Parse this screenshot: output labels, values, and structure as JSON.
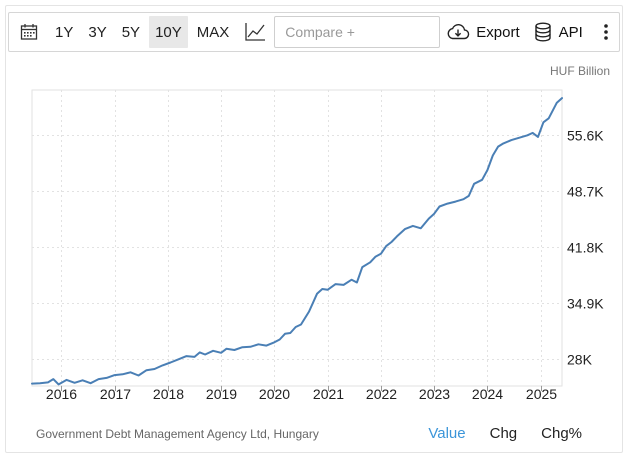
{
  "toolbar": {
    "calendar_icon": "calendar-icon",
    "ranges": [
      {
        "label": "1Y",
        "active": false
      },
      {
        "label": "3Y",
        "active": false
      },
      {
        "label": "5Y",
        "active": false
      },
      {
        "label": "10Y",
        "active": true
      },
      {
        "label": "MAX",
        "active": false
      }
    ],
    "chart_type_icon": "line-chart-icon",
    "compare_placeholder": "Compare +",
    "export_label": "Export",
    "export_icon": "cloud-download-icon",
    "api_label": "API",
    "api_icon": "database-icon",
    "more_icon": "more-vertical-icon"
  },
  "unit_label": "HUF Billion",
  "footer": {
    "source": "Government Debt Management Agency Ltd, Hungary",
    "tabs": [
      {
        "label": "Value",
        "active": true
      },
      {
        "label": "Chg",
        "active": false
      },
      {
        "label": "Chg%",
        "active": false
      }
    ]
  },
  "colors": {
    "line": "#4a7fb5",
    "grid": "#e2e2e2",
    "active_tab": "#3b95d9"
  },
  "chart_data": {
    "type": "line",
    "title": "",
    "xlabel": "",
    "ylabel": "HUF Billion",
    "x_ticks": [
      "2016",
      "2017",
      "2018",
      "2019",
      "2020",
      "2021",
      "2022",
      "2023",
      "2024",
      "2025"
    ],
    "y_ticks": [
      {
        "value": 28000,
        "label": "28K"
      },
      {
        "value": 34900,
        "label": "34.9K"
      },
      {
        "value": 41800,
        "label": "41.8K"
      },
      {
        "value": 48700,
        "label": "48.7K"
      },
      {
        "value": 55600,
        "label": "55.6K"
      }
    ],
    "xlim": [
      2015.45,
      2025.4
    ],
    "ylim": [
      24600,
      61200
    ],
    "grid": true,
    "series": [
      {
        "x": [
          2015.45,
          2015.6,
          2015.75,
          2015.85,
          2015.95,
          2016.1,
          2016.25,
          2016.4,
          2016.55,
          2016.7,
          2016.85,
          2017.0,
          2017.15,
          2017.3,
          2017.45,
          2017.6,
          2017.75,
          2017.9,
          2018.05,
          2018.2,
          2018.35,
          2018.5,
          2018.6,
          2018.7,
          2018.85,
          2019.0,
          2019.1,
          2019.25,
          2019.4,
          2019.55,
          2019.7,
          2019.85,
          2020.0,
          2020.1,
          2020.2,
          2020.3,
          2020.4,
          2020.5,
          2020.65,
          2020.8,
          2020.9,
          2021.0,
          2021.15,
          2021.3,
          2021.45,
          2021.55,
          2021.65,
          2021.8,
          2021.9,
          2022.0,
          2022.1,
          2022.2,
          2022.3,
          2022.45,
          2022.6,
          2022.75,
          2022.9,
          2023.0,
          2023.1,
          2023.25,
          2023.4,
          2023.55,
          2023.65,
          2023.75,
          2023.9,
          2024.0,
          2024.1,
          2024.2,
          2024.3,
          2024.45,
          2024.6,
          2024.75,
          2024.85,
          2024.95,
          2025.05,
          2025.15,
          2025.3,
          2025.4
        ],
        "values": [
          24900,
          24950,
          25050,
          25450,
          24800,
          25350,
          25000,
          25300,
          24950,
          25450,
          25600,
          25950,
          26050,
          26300,
          25900,
          26550,
          26700,
          27150,
          27500,
          27900,
          28300,
          28200,
          28750,
          28500,
          28950,
          28700,
          29200,
          29050,
          29400,
          29450,
          29750,
          29600,
          30000,
          30350,
          31050,
          31150,
          31900,
          32200,
          33800,
          36000,
          36600,
          36500,
          37200,
          37100,
          37750,
          37400,
          39300,
          39900,
          40600,
          40950,
          41900,
          42400,
          43100,
          44000,
          44400,
          44100,
          45300,
          45900,
          46800,
          47150,
          47400,
          47700,
          48100,
          49600,
          50100,
          51300,
          53100,
          54200,
          54600,
          55000,
          55300,
          55600,
          55900,
          55400,
          57200,
          57700,
          59600,
          60200
        ]
      }
    ]
  }
}
